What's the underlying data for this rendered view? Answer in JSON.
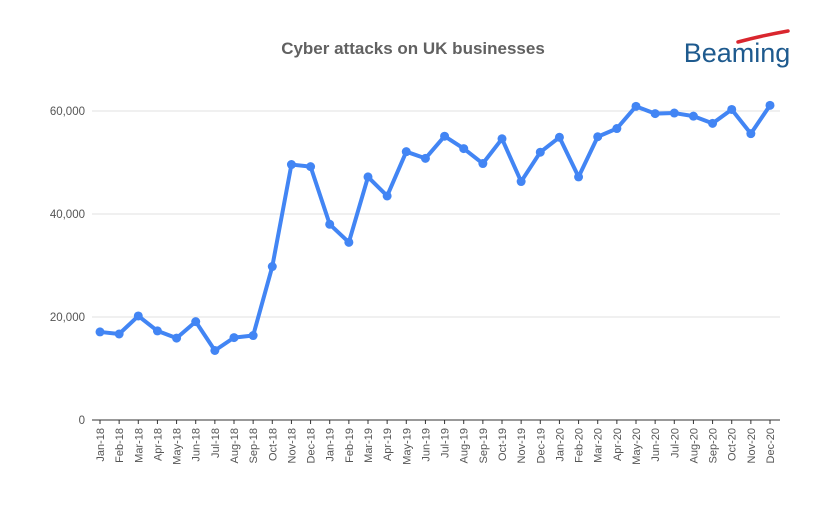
{
  "brand": {
    "name": "Beaming",
    "text_color": "#1e5a8e",
    "swoosh_color": "#d9262e"
  },
  "chart_data": {
    "type": "line",
    "title": "Cyber attacks on UK businesses",
    "xlabel": "",
    "ylabel": "",
    "ylim": [
      0,
      60000
    ],
    "yticks": [
      0,
      20000,
      40000,
      60000
    ],
    "ytick_labels": [
      "0",
      "20,000",
      "40,000",
      "60,000"
    ],
    "grid": true,
    "line_color": "#4285f4",
    "categories": [
      "Jan-18",
      "Feb-18",
      "Mar-18",
      "Apr-18",
      "May-18",
      "Jun-18",
      "Jul-18",
      "Aug-18",
      "Sep-18",
      "Oct-18",
      "Nov-18",
      "Dec-18",
      "Jan-19",
      "Feb-19",
      "Mar-19",
      "Apr-19",
      "May-19",
      "Jun-19",
      "Jul-19",
      "Aug-19",
      "Sep-19",
      "Oct-19",
      "Nov-19",
      "Dec-19",
      "Jan-20",
      "Feb-20",
      "Mar-20",
      "Apr-20",
      "May-20",
      "Jun-20",
      "Jul-20",
      "Aug-20",
      "Sep-20",
      "Oct-20",
      "Nov-20",
      "Dec-20"
    ],
    "series": [
      {
        "values": [
          17100,
          16700,
          20200,
          17300,
          15900,
          19100,
          13500,
          16000,
          16400,
          29800,
          49600,
          49200,
          38000,
          34500,
          47200,
          43500,
          52100,
          50800,
          55100,
          52700,
          49800,
          54600,
          46300,
          52000,
          54900,
          47200,
          55000,
          56600,
          60900,
          59500,
          59600,
          59000,
          57600,
          60300,
          55600,
          61100
        ]
      }
    ]
  }
}
